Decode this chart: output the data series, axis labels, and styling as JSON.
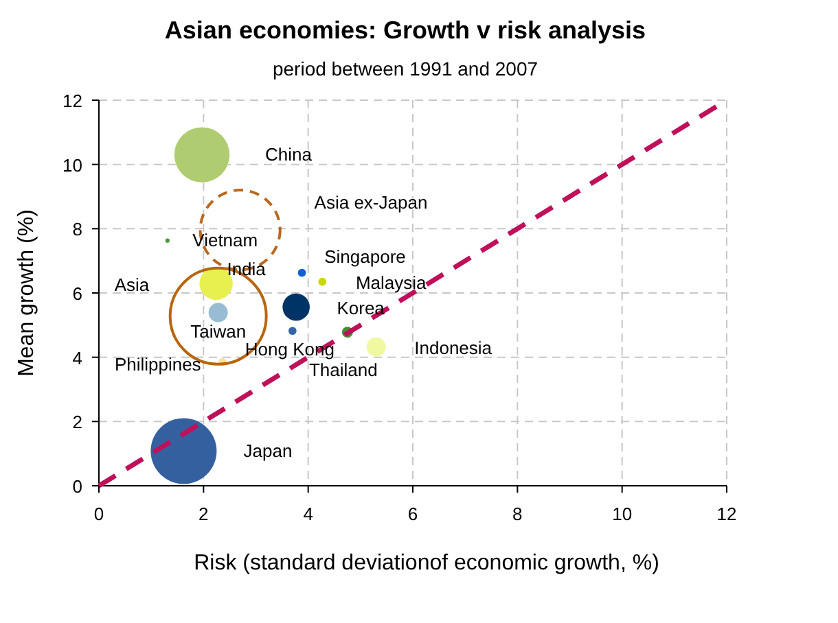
{
  "chart_data": {
    "type": "bubble",
    "title": "Asian economies: Growth v risk analysis",
    "subtitle": "period between 1991 and 2007",
    "xlabel": "Risk (standard deviationof economic growth, %)",
    "ylabel": "Mean growth (%)",
    "xlim": [
      0,
      12
    ],
    "xticks": [
      0,
      2,
      4,
      6,
      8,
      10,
      12
    ],
    "ylim": [
      0,
      12
    ],
    "yticks": [
      0,
      2,
      4,
      6,
      8,
      10,
      12
    ],
    "grid": true,
    "series": [
      {
        "x": [
          1.97,
          1.31,
          2.24,
          2.28,
          2.36,
          1.62,
          3.88,
          4.27,
          3.77,
          3.7,
          4.75,
          5.3
        ],
        "values": [
          10.3,
          7.63,
          6.3,
          5.39,
          3.85,
          1.08,
          6.63,
          6.35,
          5.56,
          4.82,
          4.78,
          4.32
        ],
        "sizes": [
          0.33,
          0.002,
          0.12,
          0.04,
          0.007,
          0.47,
          0.007,
          0.007,
          0.08,
          0.007,
          0.013,
          0.04
        ],
        "colors": [
          "#b0cc70",
          "#4a9a3a",
          "#e8f050",
          "#98bcd4",
          "#f8e0a0",
          "#3560a0",
          "#1060d0",
          "#c8d800",
          "#003366",
          "#3565a5",
          "#3f8f30",
          "#f0f8a0"
        ]
      },
      {
        "type": "bubble",
        "x": [
          2.28
        ],
        "values": [
          5.28
        ],
        "sizes": [
          1
        ],
        "color": "#b8660f",
        "line_style": "solid"
      },
      {
        "type": "bubble",
        "x": [
          2.7
        ],
        "values": [
          7.96
        ],
        "sizes": [
          0.69
        ],
        "color": "#b86820",
        "line_style": "dashed"
      },
      {
        "type": "line",
        "x": [
          0,
          11.8
        ],
        "values": [
          0,
          11.8
        ],
        "color": "#c0105a",
        "line_style": "dashed"
      }
    ],
    "annotations": [
      "China",
      "Asia ex-Japan",
      {
        "text": "Vietnam",
        "x": 1.31,
        "y": 7.63
      },
      {
        "text": "India",
        "x": 2.24,
        "y": 6.3
      },
      "Asia",
      {
        "text": "Taiwan",
        "x": 2.28,
        "y": 5.39
      },
      {
        "text": "Philippines",
        "x": 2.36,
        "y": 3.85
      },
      {
        "text": "Hong Kong",
        "x": 3.7,
        "y": 4.82
      },
      {
        "text": "Thailand",
        "x": 4.75,
        "y": 4.78
      },
      {
        "text": "Singapore",
        "x": 3.88,
        "y": 6.63
      },
      {
        "text": "Malaysia",
        "x": 4.27,
        "y": 6.35
      },
      {
        "text": "Korea",
        "x": 3.77,
        "y": 5.56
      },
      {
        "text": "Indonesia",
        "x": 5.3,
        "y": 4.32
      },
      "Japan"
    ]
  }
}
